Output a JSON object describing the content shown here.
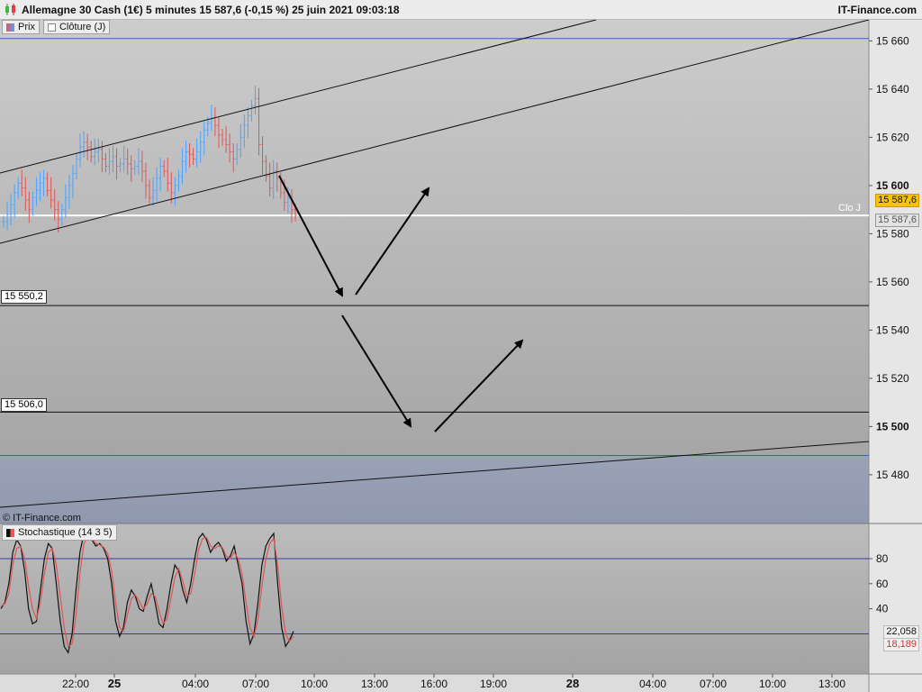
{
  "header": {
    "title": "Allemagne 30 Cash (1€) 5 minutes 15 587,6 (-0,15 %) 25 juin 2021 09:03:18",
    "brand": "IT-Finance.com"
  },
  "legend": {
    "price_label": "Prix",
    "close_label": "Clôture (J)"
  },
  "copyright": "© IT-Finance.com",
  "stochastic": {
    "label": "Stochastique (14 3 5)",
    "k_value": "22,058",
    "d_value": "18,189"
  },
  "price_tags": {
    "last": "15 587,6",
    "close": "15 587,6",
    "close_label": "Clo J"
  },
  "levels": [
    {
      "label": "15 550,2",
      "value": 15550.2
    },
    {
      "label": "15 506,0",
      "value": 15506.0
    }
  ],
  "colors": {
    "up": "#4aa3ff",
    "down": "#e05555",
    "stoch_k": "#111111",
    "stoch_d": "#e05555",
    "accent_tag": "#f5c400"
  },
  "chart_data": [
    {
      "type": "line",
      "ylabel": "",
      "ylim": [
        15468,
        15668
      ],
      "y_ticks": [
        {
          "label": "15 660",
          "value": 15660
        },
        {
          "label": "15 640",
          "value": 15640
        },
        {
          "label": "15 620",
          "value": 15620
        },
        {
          "label": "15 600",
          "value": 15600,
          "bold": true
        },
        {
          "label": "15 580",
          "value": 15580
        },
        {
          "label": "15 560",
          "value": 15560
        },
        {
          "label": "15 540",
          "value": 15540
        },
        {
          "label": "15 520",
          "value": 15520
        },
        {
          "label": "15 500",
          "value": 15500,
          "bold": true
        },
        {
          "label": "15 480",
          "value": 15480
        }
      ],
      "x_ticks": [
        "22:00",
        "25",
        "04:00",
        "07:00",
        "10:00",
        "13:00",
        "16:00",
        "19:00",
        "28",
        "04:00",
        "07:00",
        "10:00",
        "13:00"
      ],
      "x_ticks_bold": [
        "25",
        "28"
      ],
      "close_line": 15587.6,
      "reference_lines": [
        15661,
        15488
      ],
      "series": [
        {
          "values": [
            15585,
            15588,
            15592,
            15597,
            15601,
            15599,
            15594,
            15590,
            15595,
            15598,
            15601,
            15603,
            15598,
            15594,
            15590,
            15586,
            15590,
            15595,
            15600,
            15605,
            15611,
            15616,
            15618,
            15616,
            15612,
            15614,
            15615,
            15611,
            15608,
            15610,
            15612,
            15608,
            15609,
            15611,
            15609,
            15607,
            15608,
            15610,
            15606,
            15600,
            15595,
            15598,
            15603,
            15608,
            15606,
            15601,
            15597,
            15600,
            15604,
            15610,
            15614,
            15613,
            15611,
            15614,
            15618,
            15623,
            15626,
            15628,
            15625,
            15621,
            15619,
            15617,
            15614,
            15611,
            15615,
            15620,
            15625,
            15629,
            15633,
            15636,
            15617,
            15610,
            15604,
            15599,
            15606,
            15603,
            15597,
            15593,
            15595,
            15590,
            15587.6
          ]
        }
      ],
      "annotations_arrows": 4
    },
    {
      "type": "line",
      "ylim": [
        -12,
        108
      ],
      "y_ticks": [
        {
          "label": "80",
          "value": 80
        },
        {
          "label": "60",
          "value": 60
        },
        {
          "label": "40",
          "value": 40
        }
      ],
      "levels": [
        80,
        20
      ],
      "series": [
        {
          "name": "K",
          "values": [
            40,
            45,
            60,
            85,
            95,
            90,
            70,
            40,
            28,
            30,
            55,
            80,
            92,
            88,
            60,
            30,
            10,
            5,
            20,
            55,
            85,
            100,
            97,
            95,
            90,
            92,
            88,
            80,
            60,
            30,
            18,
            25,
            45,
            55,
            50,
            40,
            38,
            50,
            60,
            45,
            28,
            25,
            40,
            60,
            75,
            70,
            55,
            45,
            60,
            80,
            96,
            100,
            95,
            85,
            90,
            93,
            88,
            78,
            82,
            90,
            75,
            60,
            30,
            12,
            20,
            45,
            75,
            90,
            96,
            100,
            60,
            25,
            10,
            15,
            22.058
          ]
        },
        {
          "name": "D",
          "values": [
            42,
            44,
            52,
            75,
            88,
            90,
            80,
            58,
            40,
            32,
            45,
            68,
            85,
            88,
            75,
            50,
            25,
            10,
            12,
            35,
            68,
            92,
            98,
            96,
            92,
            91,
            89,
            84,
            70,
            45,
            25,
            22,
            35,
            48,
            51,
            46,
            40,
            44,
            52,
            50,
            38,
            28,
            32,
            48,
            65,
            72,
            62,
            50,
            52,
            68,
            87,
            96,
            97,
            90,
            88,
            90,
            89,
            82,
            80,
            85,
            80,
            68,
            45,
            25,
            18,
            32,
            58,
            80,
            92,
            96,
            75,
            42,
            20,
            14,
            18.189
          ]
        }
      ]
    }
  ]
}
